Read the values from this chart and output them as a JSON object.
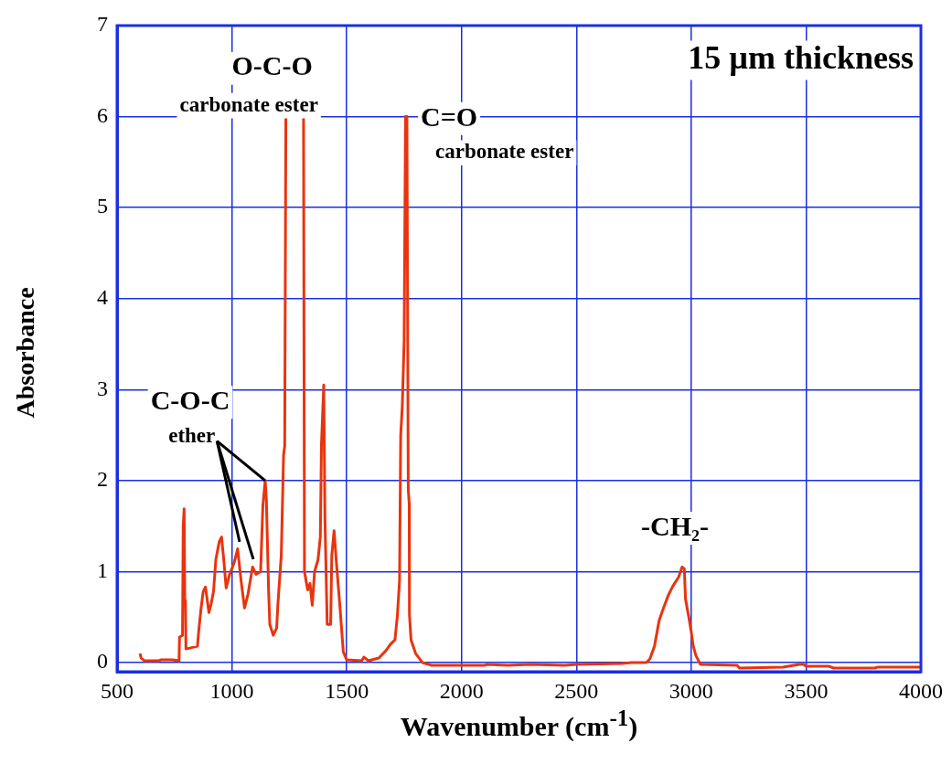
{
  "chart_data": {
    "type": "line",
    "title": "15 µm thickness",
    "xlabel": "Wavenumber (cm$^{-1}$)",
    "ylabel": "Absorbance",
    "xlim": [
      500,
      4000
    ],
    "xticks": [
      500,
      1000,
      1500,
      2000,
      2500,
      3000,
      3500,
      4000
    ],
    "ylim": [
      -0.1,
      7
    ],
    "yticks": [
      0,
      1,
      2,
      3,
      4,
      5,
      6,
      7
    ],
    "grid": true,
    "legend": false,
    "marker": "none",
    "line_style": "solid",
    "annotations": [
      "O-C-O",
      "carbonate ester",
      "C=O",
      "carbonate ester",
      "C-O-C",
      {
        "text": "ether",
        "x": 1145,
        "y": 2.0
      },
      "-CH₂-"
    ],
    "series": [
      {
        "color": "#e8340e",
        "x": [
          600,
          605,
          620,
          680,
          690,
          740,
          770,
          772,
          785,
          788,
          792,
          795,
          798,
          800,
          850,
          855,
          865,
          875,
          885,
          900,
          910,
          920,
          930,
          945,
          955,
          965,
          975,
          990,
          1010,
          1025,
          1040,
          1055,
          1070,
          1090,
          1105,
          1125,
          1135,
          1145,
          1150,
          1160,
          1165,
          1180,
          1195,
          1200,
          1215,
          1225,
          1230,
          1235,
          1312,
          1316,
          1330,
          1340,
          1350,
          1360,
          1375,
          1385,
          1390,
          1400,
          1405,
          1415,
          1430,
          1435,
          1445,
          1455,
          1470,
          1485,
          1500,
          1565,
          1575,
          1595,
          1640,
          1670,
          1690,
          1710,
          1720,
          1730,
          1735,
          1742,
          1750,
          1756,
          1762,
          1768,
          1772,
          1773,
          1780,
          1800,
          1830,
          1870,
          2100,
          2110,
          2200,
          2300,
          2450,
          2500,
          2700,
          2740,
          2805,
          2820,
          2840,
          2860,
          2875,
          2900,
          2920,
          2945,
          2960,
          2970,
          2975,
          2990,
          3000,
          3008,
          3020,
          3040,
          3200,
          3210,
          3400,
          3470,
          3490,
          3500,
          3600,
          3620,
          3800,
          3810,
          4000
        ],
        "values": [
          0.1,
          0.05,
          0.02,
          0.02,
          0.03,
          0.03,
          0.02,
          0.28,
          0.3,
          1.49,
          1.69,
          0.68,
          0.6,
          0.15,
          0.18,
          0.33,
          0.58,
          0.78,
          0.83,
          0.55,
          0.65,
          0.78,
          1.13,
          1.33,
          1.38,
          1.12,
          0.82,
          0.97,
          1.1,
          1.25,
          0.9,
          0.6,
          0.75,
          1.05,
          0.97,
          1.0,
          1.73,
          2.0,
          1.8,
          0.78,
          0.42,
          0.3,
          0.38,
          0.63,
          1.18,
          2.28,
          2.38,
          6,
          6,
          1.0,
          0.8,
          0.87,
          0.63,
          1.0,
          1.13,
          1.38,
          2.4,
          3.05,
          1.6,
          0.42,
          0.42,
          1.18,
          1.45,
          1.1,
          0.63,
          0.12,
          0.03,
          0.02,
          0.06,
          0.02,
          0.05,
          0.13,
          0.2,
          0.25,
          0.5,
          0.9,
          2.5,
          2.82,
          3.54,
          6,
          6,
          1.9,
          1.75,
          0.53,
          0.25,
          0.1,
          0.0,
          -0.03,
          -0.03,
          -0.02,
          -0.03,
          -0.02,
          -0.03,
          -0.02,
          -0.01,
          0.0,
          0.0,
          0.04,
          0.18,
          0.46,
          0.57,
          0.74,
          0.84,
          0.94,
          1.05,
          1.03,
          0.7,
          0.49,
          0.34,
          0.19,
          0.08,
          -0.02,
          -0.03,
          -0.06,
          -0.05,
          -0.02,
          -0.02,
          -0.04,
          -0.04,
          -0.06,
          -0.06,
          -0.05,
          -0.05
        ]
      }
    ]
  }
}
